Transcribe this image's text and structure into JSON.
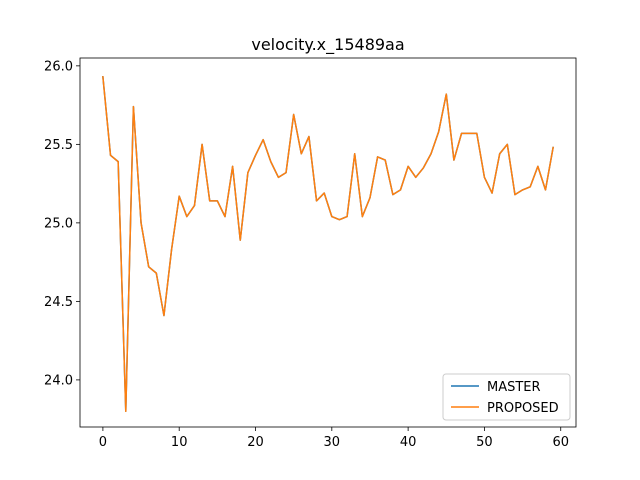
{
  "chart_data": {
    "type": "line",
    "title": "velocity.x_15489aa",
    "xlabel": "",
    "ylabel": "",
    "xlim": [
      -3,
      62
    ],
    "ylim": [
      23.7,
      26.05
    ],
    "x_ticks": [
      0,
      10,
      20,
      30,
      40,
      50,
      60
    ],
    "x_tick_labels": [
      "0",
      "10",
      "20",
      "30",
      "40",
      "50",
      "60"
    ],
    "y_ticks": [
      24.0,
      24.5,
      25.0,
      25.5,
      26.0
    ],
    "y_tick_labels": [
      "24.0",
      "24.5",
      "25.0",
      "25.5",
      "26.0"
    ],
    "grid": false,
    "legend_position": "lower-right",
    "x": [
      0,
      1,
      2,
      3,
      4,
      5,
      6,
      7,
      8,
      9,
      10,
      11,
      12,
      13,
      14,
      15,
      16,
      17,
      18,
      19,
      20,
      21,
      22,
      23,
      24,
      25,
      26,
      27,
      28,
      29,
      30,
      31,
      32,
      33,
      34,
      35,
      36,
      37,
      38,
      39,
      40,
      41,
      42,
      43,
      44,
      45,
      46,
      47,
      48,
      49,
      50,
      51,
      52,
      53,
      54,
      55,
      56,
      57,
      58,
      59
    ],
    "series": [
      {
        "name": "MASTER",
        "color": "#1f77b4",
        "values": [
          25.93,
          25.43,
          25.39,
          23.8,
          25.74,
          25.0,
          24.72,
          24.68,
          24.41,
          24.83,
          25.17,
          25.04,
          25.11,
          25.5,
          25.14,
          25.14,
          25.04,
          25.36,
          24.89,
          25.32,
          25.43,
          25.53,
          25.39,
          25.29,
          25.32,
          25.69,
          25.44,
          25.55,
          25.14,
          25.19,
          25.04,
          25.02,
          25.04,
          25.44,
          25.04,
          25.16,
          25.42,
          25.4,
          25.18,
          25.21,
          25.36,
          25.29,
          25.35,
          25.44,
          25.58,
          25.82,
          25.4,
          25.57,
          25.57,
          25.57,
          25.29,
          25.19,
          25.44,
          25.5,
          25.18,
          25.21,
          25.23,
          25.36,
          25.21,
          25.48
        ]
      },
      {
        "name": "PROPOSED",
        "color": "#ff7f0e",
        "values": [
          25.93,
          25.43,
          25.39,
          23.8,
          25.74,
          25.0,
          24.72,
          24.68,
          24.41,
          24.83,
          25.17,
          25.04,
          25.11,
          25.5,
          25.14,
          25.14,
          25.04,
          25.36,
          24.89,
          25.32,
          25.43,
          25.53,
          25.39,
          25.29,
          25.32,
          25.69,
          25.44,
          25.55,
          25.14,
          25.19,
          25.04,
          25.02,
          25.04,
          25.44,
          25.04,
          25.16,
          25.42,
          25.4,
          25.18,
          25.21,
          25.36,
          25.29,
          25.35,
          25.44,
          25.58,
          25.82,
          25.4,
          25.57,
          25.57,
          25.57,
          25.29,
          25.19,
          25.44,
          25.5,
          25.18,
          25.21,
          25.23,
          25.36,
          25.21,
          25.48
        ]
      }
    ]
  }
}
